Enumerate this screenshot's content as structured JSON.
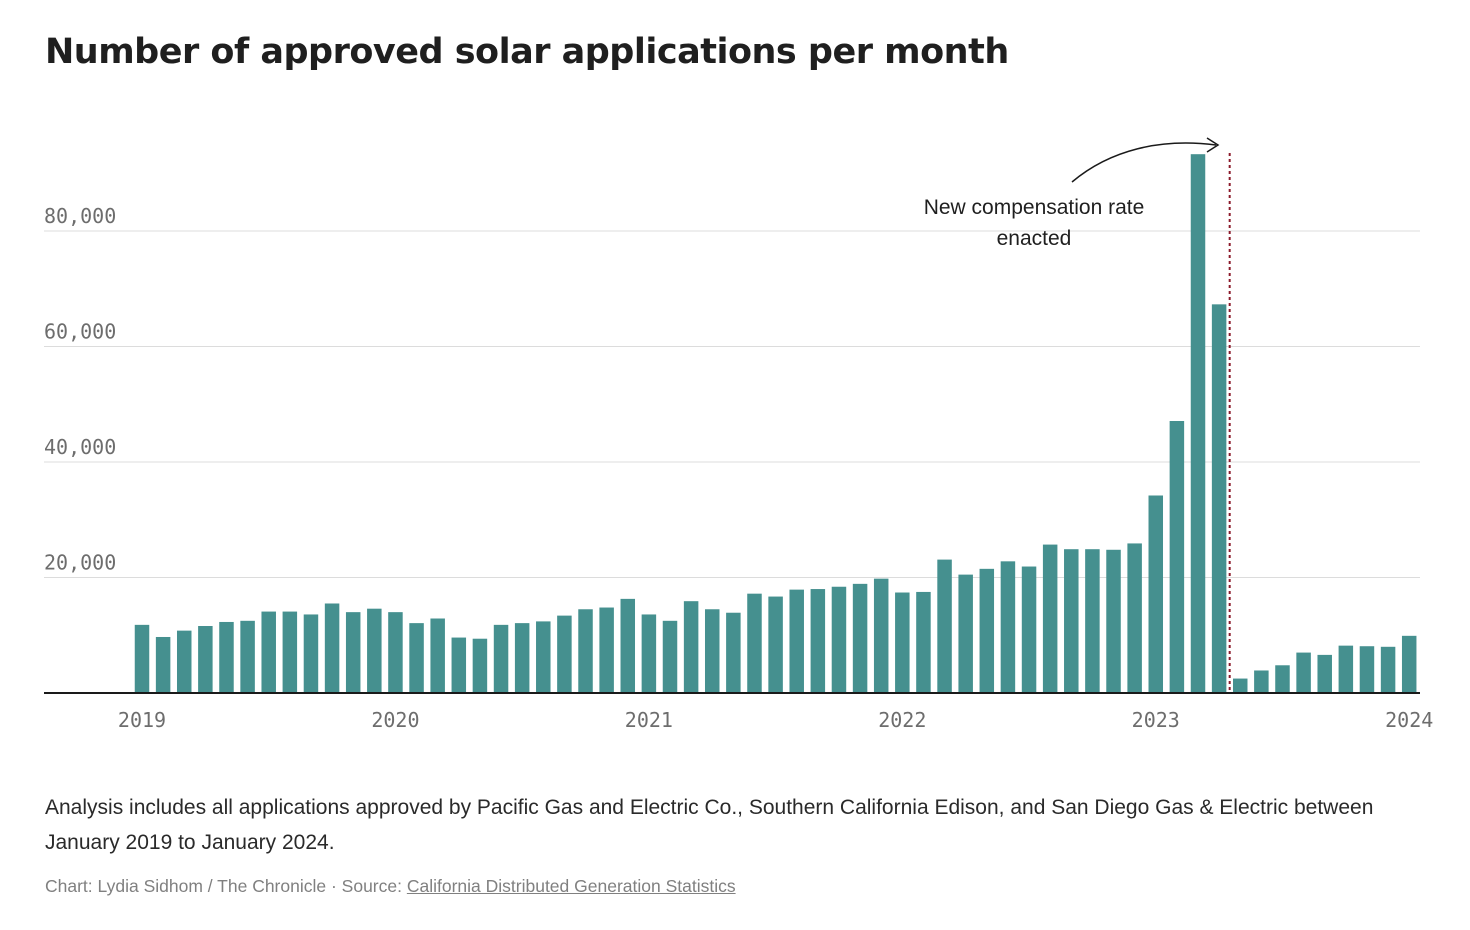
{
  "chart_data": {
    "type": "bar",
    "title": "Number of approved solar applications per month",
    "xlabel": "",
    "ylabel": "",
    "ylim": [
      0,
      100000
    ],
    "yticks": [
      20000,
      40000,
      60000,
      80000
    ],
    "ytick_labels": [
      "20,000",
      "40,000",
      "60,000",
      "80,000"
    ],
    "xticks": [
      {
        "label": "2019",
        "month_index": 0
      },
      {
        "label": "2020",
        "month_index": 12
      },
      {
        "label": "2021",
        "month_index": 24
      },
      {
        "label": "2022",
        "month_index": 36
      },
      {
        "label": "2023",
        "month_index": 48
      },
      {
        "label": "2024",
        "month_index": 60
      }
    ],
    "grid": true,
    "color": "#45908f",
    "series": [
      {
        "values": [
          11800,
          9700,
          10800,
          11600,
          12300,
          12500,
          14100,
          14100,
          13600,
          15500,
          14000,
          14600,
          14000,
          12100,
          12900,
          9600,
          9400,
          11800,
          12100,
          12400,
          13400,
          14500,
          14800,
          16300,
          13600,
          12500,
          15900,
          14500,
          13900,
          17200,
          16700,
          17900,
          18000,
          18400,
          18900,
          19800,
          17400,
          17500,
          23100,
          20500,
          21500,
          22800,
          21900,
          25700,
          24900,
          24900,
          24800,
          25900,
          34200,
          47100,
          93300,
          67300,
          2500,
          3900,
          4800,
          7000,
          6600,
          8200,
          8100,
          8000,
          9900
        ]
      }
    ],
    "annotation": {
      "lines": [
        "New compensation rate",
        "enacted"
      ],
      "marker_month_index": 51.5,
      "marker_color": "#8b1a2b"
    }
  },
  "footer": {
    "note": "Analysis includes all applications approved by Pacific Gas and Electric Co., Southern California Edison, and San Diego Gas & Electric between January 2019 to January 2024.",
    "credit_prefix": "Chart: Lydia Sidhom / The Chronicle · Source: ",
    "source_link": "California Distributed Generation Statistics"
  }
}
